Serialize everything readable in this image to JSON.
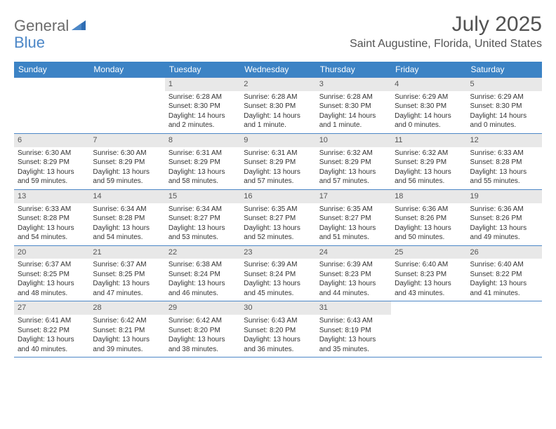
{
  "logo": {
    "general": "General",
    "blue": "Blue"
  },
  "title": {
    "month": "July 2025",
    "location": "Saint Augustine, Florida, United States"
  },
  "day_headers": [
    "Sunday",
    "Monday",
    "Tuesday",
    "Wednesday",
    "Thursday",
    "Friday",
    "Saturday"
  ],
  "colors": {
    "header_bg": "#3c83c5",
    "header_text": "#ffffff",
    "daynum_bg": "#e8e8e8",
    "border": "#4c87c7",
    "logo_gray": "#6b6b6b",
    "logo_blue": "#4c87c7",
    "title_color": "#525252"
  },
  "weeks": [
    [
      {
        "day": "",
        "sunrise": "",
        "sunset": "",
        "daylight": ""
      },
      {
        "day": "",
        "sunrise": "",
        "sunset": "",
        "daylight": ""
      },
      {
        "day": "1",
        "sunrise": "Sunrise: 6:28 AM",
        "sunset": "Sunset: 8:30 PM",
        "daylight": "Daylight: 14 hours and 2 minutes."
      },
      {
        "day": "2",
        "sunrise": "Sunrise: 6:28 AM",
        "sunset": "Sunset: 8:30 PM",
        "daylight": "Daylight: 14 hours and 1 minute."
      },
      {
        "day": "3",
        "sunrise": "Sunrise: 6:28 AM",
        "sunset": "Sunset: 8:30 PM",
        "daylight": "Daylight: 14 hours and 1 minute."
      },
      {
        "day": "4",
        "sunrise": "Sunrise: 6:29 AM",
        "sunset": "Sunset: 8:30 PM",
        "daylight": "Daylight: 14 hours and 0 minutes."
      },
      {
        "day": "5",
        "sunrise": "Sunrise: 6:29 AM",
        "sunset": "Sunset: 8:30 PM",
        "daylight": "Daylight: 14 hours and 0 minutes."
      }
    ],
    [
      {
        "day": "6",
        "sunrise": "Sunrise: 6:30 AM",
        "sunset": "Sunset: 8:29 PM",
        "daylight": "Daylight: 13 hours and 59 minutes."
      },
      {
        "day": "7",
        "sunrise": "Sunrise: 6:30 AM",
        "sunset": "Sunset: 8:29 PM",
        "daylight": "Daylight: 13 hours and 59 minutes."
      },
      {
        "day": "8",
        "sunrise": "Sunrise: 6:31 AM",
        "sunset": "Sunset: 8:29 PM",
        "daylight": "Daylight: 13 hours and 58 minutes."
      },
      {
        "day": "9",
        "sunrise": "Sunrise: 6:31 AM",
        "sunset": "Sunset: 8:29 PM",
        "daylight": "Daylight: 13 hours and 57 minutes."
      },
      {
        "day": "10",
        "sunrise": "Sunrise: 6:32 AM",
        "sunset": "Sunset: 8:29 PM",
        "daylight": "Daylight: 13 hours and 57 minutes."
      },
      {
        "day": "11",
        "sunrise": "Sunrise: 6:32 AM",
        "sunset": "Sunset: 8:29 PM",
        "daylight": "Daylight: 13 hours and 56 minutes."
      },
      {
        "day": "12",
        "sunrise": "Sunrise: 6:33 AM",
        "sunset": "Sunset: 8:28 PM",
        "daylight": "Daylight: 13 hours and 55 minutes."
      }
    ],
    [
      {
        "day": "13",
        "sunrise": "Sunrise: 6:33 AM",
        "sunset": "Sunset: 8:28 PM",
        "daylight": "Daylight: 13 hours and 54 minutes."
      },
      {
        "day": "14",
        "sunrise": "Sunrise: 6:34 AM",
        "sunset": "Sunset: 8:28 PM",
        "daylight": "Daylight: 13 hours and 54 minutes."
      },
      {
        "day": "15",
        "sunrise": "Sunrise: 6:34 AM",
        "sunset": "Sunset: 8:27 PM",
        "daylight": "Daylight: 13 hours and 53 minutes."
      },
      {
        "day": "16",
        "sunrise": "Sunrise: 6:35 AM",
        "sunset": "Sunset: 8:27 PM",
        "daylight": "Daylight: 13 hours and 52 minutes."
      },
      {
        "day": "17",
        "sunrise": "Sunrise: 6:35 AM",
        "sunset": "Sunset: 8:27 PM",
        "daylight": "Daylight: 13 hours and 51 minutes."
      },
      {
        "day": "18",
        "sunrise": "Sunrise: 6:36 AM",
        "sunset": "Sunset: 8:26 PM",
        "daylight": "Daylight: 13 hours and 50 minutes."
      },
      {
        "day": "19",
        "sunrise": "Sunrise: 6:36 AM",
        "sunset": "Sunset: 8:26 PM",
        "daylight": "Daylight: 13 hours and 49 minutes."
      }
    ],
    [
      {
        "day": "20",
        "sunrise": "Sunrise: 6:37 AM",
        "sunset": "Sunset: 8:25 PM",
        "daylight": "Daylight: 13 hours and 48 minutes."
      },
      {
        "day": "21",
        "sunrise": "Sunrise: 6:37 AM",
        "sunset": "Sunset: 8:25 PM",
        "daylight": "Daylight: 13 hours and 47 minutes."
      },
      {
        "day": "22",
        "sunrise": "Sunrise: 6:38 AM",
        "sunset": "Sunset: 8:24 PM",
        "daylight": "Daylight: 13 hours and 46 minutes."
      },
      {
        "day": "23",
        "sunrise": "Sunrise: 6:39 AM",
        "sunset": "Sunset: 8:24 PM",
        "daylight": "Daylight: 13 hours and 45 minutes."
      },
      {
        "day": "24",
        "sunrise": "Sunrise: 6:39 AM",
        "sunset": "Sunset: 8:23 PM",
        "daylight": "Daylight: 13 hours and 44 minutes."
      },
      {
        "day": "25",
        "sunrise": "Sunrise: 6:40 AM",
        "sunset": "Sunset: 8:23 PM",
        "daylight": "Daylight: 13 hours and 43 minutes."
      },
      {
        "day": "26",
        "sunrise": "Sunrise: 6:40 AM",
        "sunset": "Sunset: 8:22 PM",
        "daylight": "Daylight: 13 hours and 41 minutes."
      }
    ],
    [
      {
        "day": "27",
        "sunrise": "Sunrise: 6:41 AM",
        "sunset": "Sunset: 8:22 PM",
        "daylight": "Daylight: 13 hours and 40 minutes."
      },
      {
        "day": "28",
        "sunrise": "Sunrise: 6:42 AM",
        "sunset": "Sunset: 8:21 PM",
        "daylight": "Daylight: 13 hours and 39 minutes."
      },
      {
        "day": "29",
        "sunrise": "Sunrise: 6:42 AM",
        "sunset": "Sunset: 8:20 PM",
        "daylight": "Daylight: 13 hours and 38 minutes."
      },
      {
        "day": "30",
        "sunrise": "Sunrise: 6:43 AM",
        "sunset": "Sunset: 8:20 PM",
        "daylight": "Daylight: 13 hours and 36 minutes."
      },
      {
        "day": "31",
        "sunrise": "Sunrise: 6:43 AM",
        "sunset": "Sunset: 8:19 PM",
        "daylight": "Daylight: 13 hours and 35 minutes."
      },
      {
        "day": "",
        "sunrise": "",
        "sunset": "",
        "daylight": ""
      },
      {
        "day": "",
        "sunrise": "",
        "sunset": "",
        "daylight": ""
      }
    ]
  ]
}
